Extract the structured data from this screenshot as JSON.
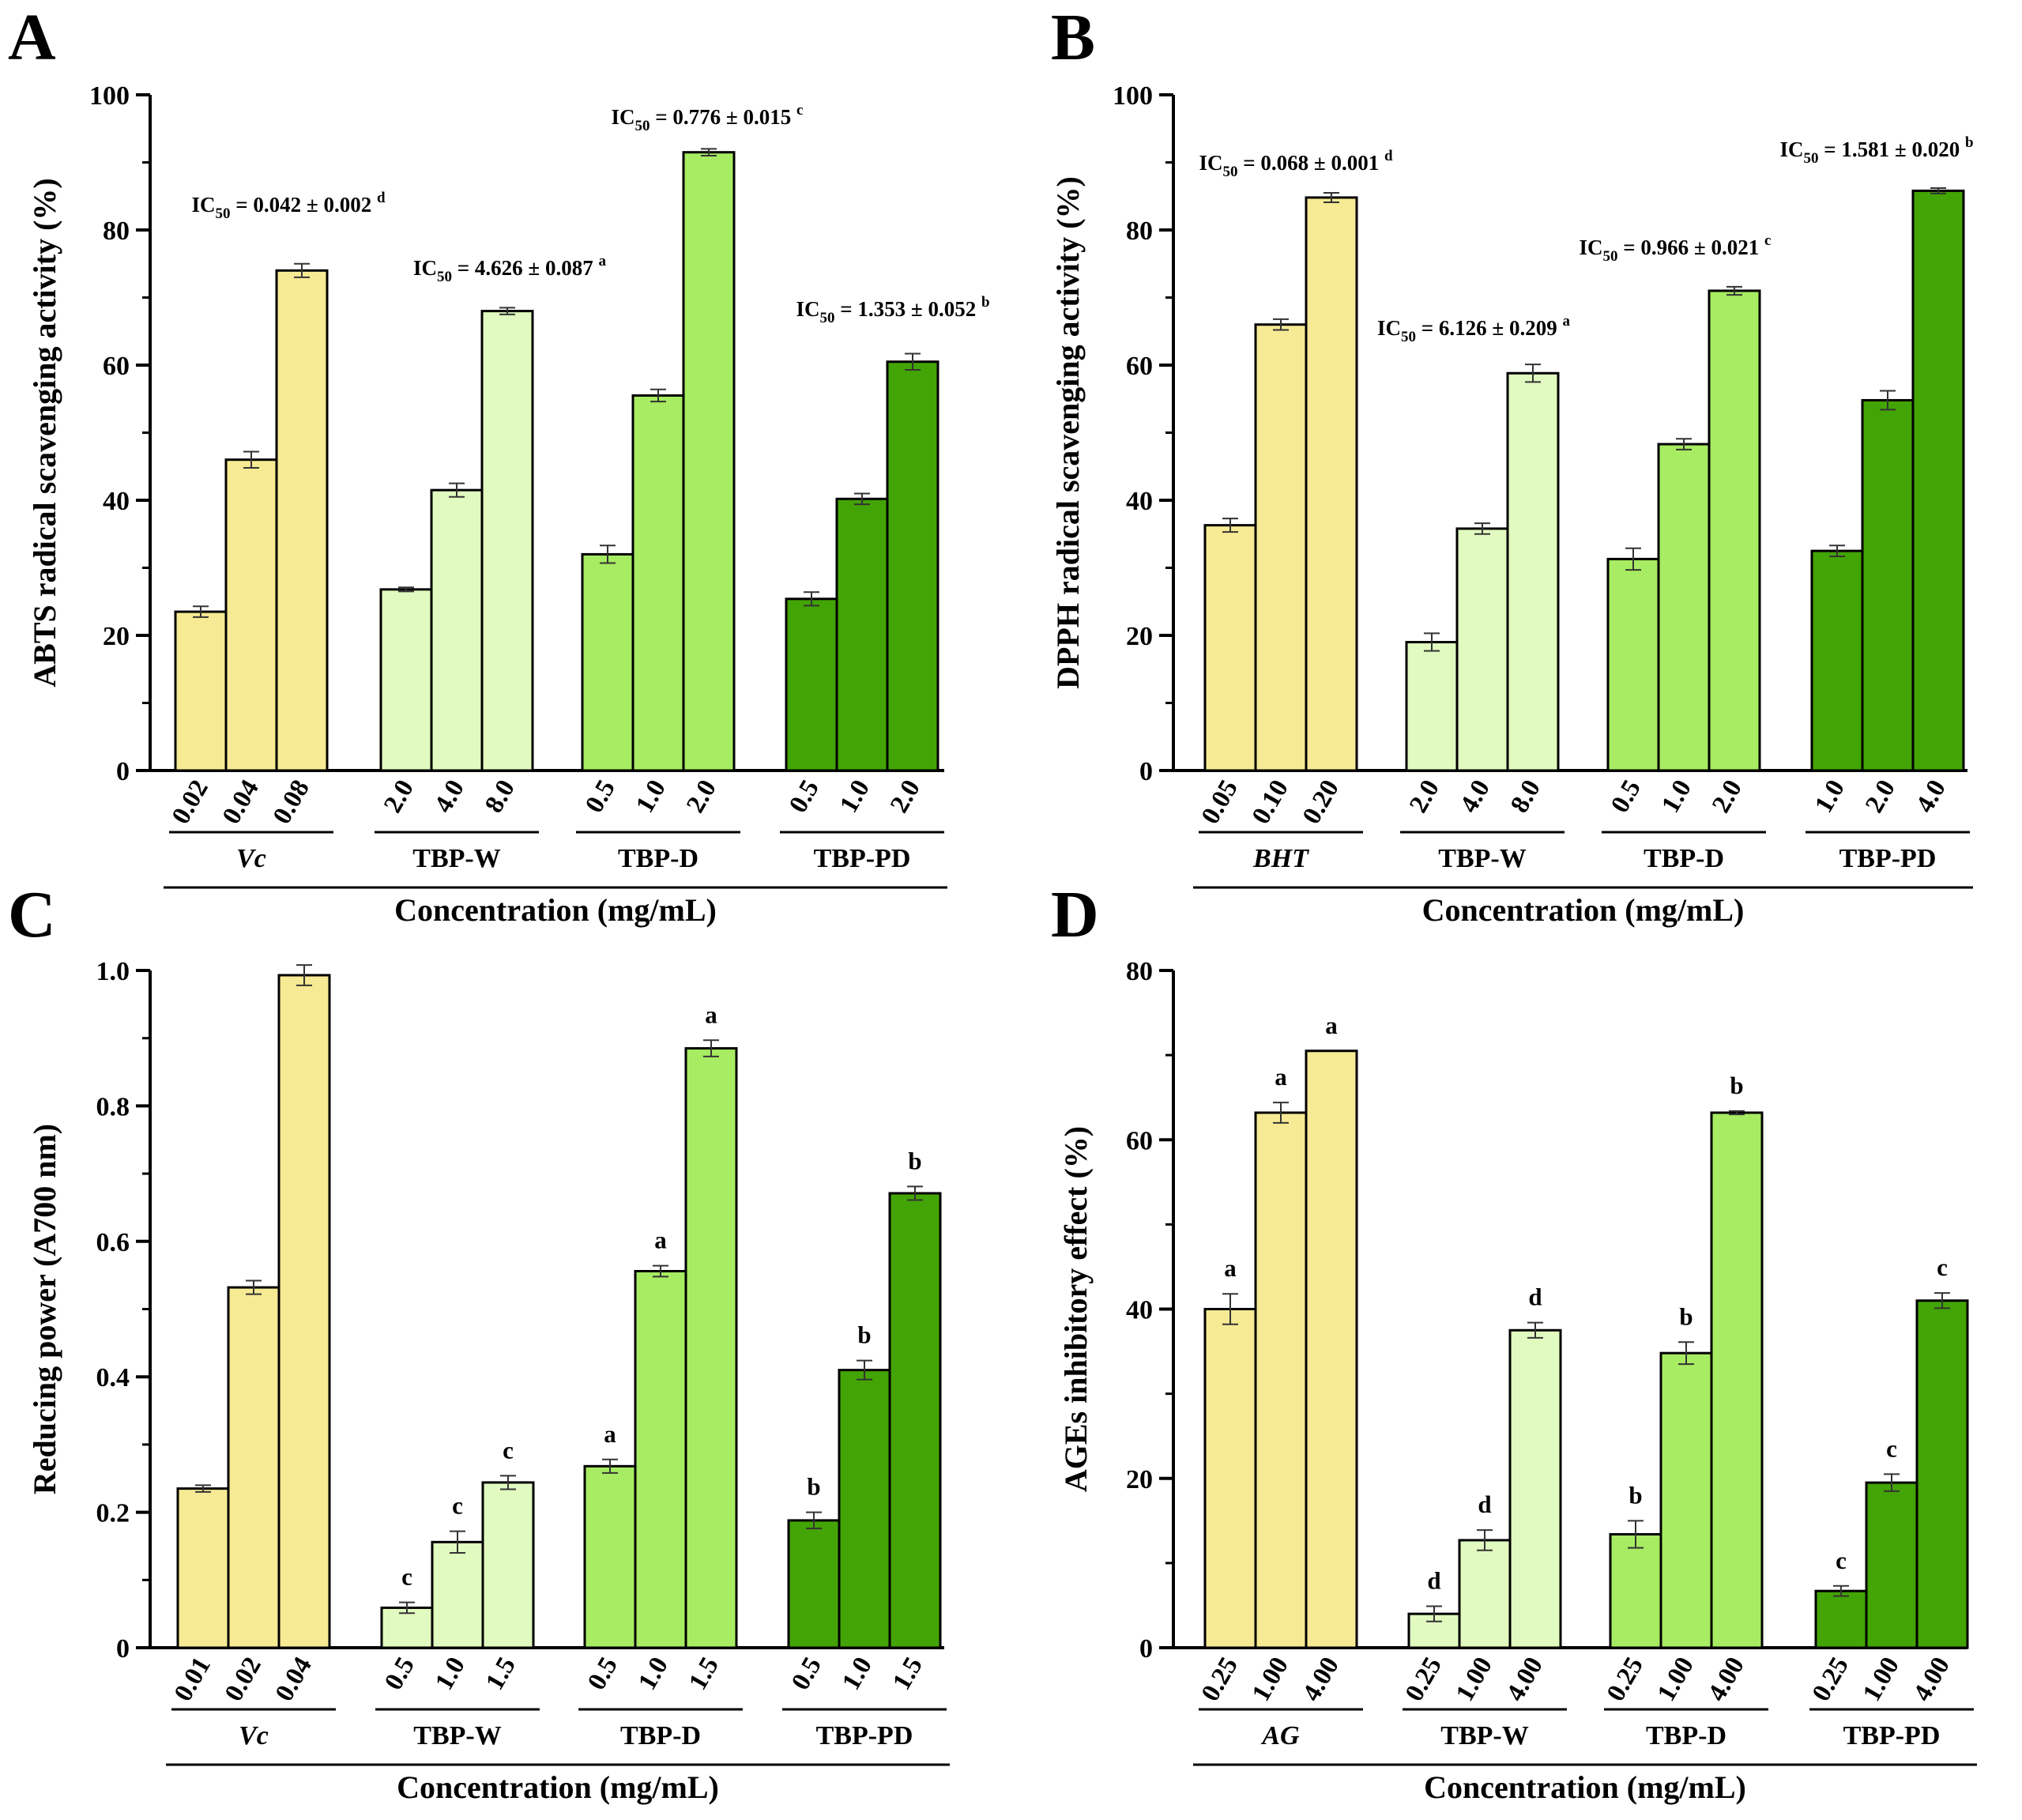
{
  "chart_data": [
    {
      "panel": "A",
      "type": "bar",
      "ylabel": "ABTS radical scavenging activity (%)",
      "xlabel": "Concentration (mg/mL)",
      "ylim": [
        0,
        100
      ],
      "yticks": [
        0,
        20,
        40,
        60,
        80,
        100
      ],
      "groups": [
        {
          "name": "Vc",
          "italic": true,
          "color": "#f7ea94",
          "categories": [
            "0.02",
            "0.04",
            "0.08"
          ],
          "values": [
            23.5,
            46.0,
            74.0
          ],
          "errors": [
            0.8,
            1.2,
            1.0
          ],
          "annotation": {
            "prefix": "IC",
            "sub": "50",
            "text": " = 0.042 ± 0.002 ",
            "sup": "d"
          }
        },
        {
          "name": "TBP-W",
          "italic": false,
          "color": "#e1fac0",
          "categories": [
            "2.0",
            "4.0",
            "8.0"
          ],
          "values": [
            26.8,
            41.5,
            68.0
          ],
          "errors": [
            0.3,
            1.0,
            0.5
          ],
          "annotation": {
            "prefix": "IC",
            "sub": "50",
            "text": " = 4.626 ± 0.087 ",
            "sup": "a"
          }
        },
        {
          "name": "TBP-D",
          "italic": false,
          "color": "#a7ec62",
          "categories": [
            "0.5",
            "1.0",
            "2.0"
          ],
          "values": [
            32.0,
            55.5,
            91.5
          ],
          "errors": [
            1.3,
            0.9,
            0.5
          ],
          "annotation": {
            "prefix": "IC",
            "sub": "50",
            "text": " = 0.776 ± 0.015 ",
            "sup": "c"
          }
        },
        {
          "name": "TBP-PD",
          "italic": false,
          "color": "#43a405",
          "categories": [
            "0.5",
            "1.0",
            "2.0"
          ],
          "values": [
            25.4,
            40.2,
            60.5
          ],
          "errors": [
            1.0,
            0.8,
            1.2
          ],
          "annotation": {
            "prefix": "IC",
            "sub": "50",
            "text": " = 1.353 ± 0.052 ",
            "sup": "b"
          }
        }
      ]
    },
    {
      "panel": "B",
      "type": "bar",
      "ylabel": "DPPH radical scavenging activity (%)",
      "xlabel": "Concentration (mg/mL)",
      "ylim": [
        0,
        100
      ],
      "yticks": [
        0,
        20,
        40,
        60,
        80,
        100
      ],
      "groups": [
        {
          "name": "BHT",
          "italic": true,
          "color": "#f7ea94",
          "categories": [
            "0.05",
            "0.10",
            "0.20"
          ],
          "values": [
            36.3,
            66.0,
            84.8
          ],
          "errors": [
            1.0,
            0.8,
            0.7
          ],
          "annotation": {
            "prefix": "IC",
            "sub": "50",
            "text": " = 0.068 ± 0.001 ",
            "sup": "d"
          }
        },
        {
          "name": "TBP-W",
          "italic": false,
          "color": "#e1fac0",
          "categories": [
            "2.0",
            "4.0",
            "8.0"
          ],
          "values": [
            19.0,
            35.8,
            58.8
          ],
          "errors": [
            1.3,
            0.8,
            1.3
          ],
          "annotation": {
            "prefix": "IC",
            "sub": "50",
            "text": " = 6.126 ± 0.209 ",
            "sup": "a"
          }
        },
        {
          "name": "TBP-D",
          "italic": false,
          "color": "#a7ec62",
          "categories": [
            "0.5",
            "1.0",
            "2.0"
          ],
          "values": [
            31.3,
            48.3,
            71.0
          ],
          "errors": [
            1.6,
            0.8,
            0.6
          ],
          "annotation": {
            "prefix": "IC",
            "sub": "50",
            "text": " = 0.966 ± 0.021 ",
            "sup": "c"
          }
        },
        {
          "name": "TBP-PD",
          "italic": false,
          "color": "#43a405",
          "categories": [
            "1.0",
            "2.0",
            "4.0"
          ],
          "values": [
            32.5,
            54.8,
            85.8
          ],
          "errors": [
            0.8,
            1.4,
            0.4
          ],
          "annotation": {
            "prefix": "IC",
            "sub": "50",
            "text": " = 1.581 ± 0.020 ",
            "sup": "b"
          }
        }
      ]
    },
    {
      "panel": "C",
      "type": "bar",
      "ylabel": "Reducing power (A700 nm)",
      "xlabel": "Concentration (mg/mL)",
      "ylim": [
        0,
        1.0
      ],
      "yticks": [
        "0",
        "0.2",
        "0.4",
        "0.6",
        "0.8",
        "1.0"
      ],
      "groups": [
        {
          "name": "Vc",
          "italic": true,
          "color": "#f7ea94",
          "categories": [
            "0.01",
            "0.02",
            "0.04"
          ],
          "values": [
            0.235,
            0.532,
            0.993
          ],
          "errors": [
            0.005,
            0.01,
            0.015
          ],
          "letters": [
            "",
            "",
            ""
          ]
        },
        {
          "name": "TBP-W",
          "italic": false,
          "color": "#e1fac0",
          "categories": [
            "0.5",
            "1.0",
            "1.5"
          ],
          "values": [
            0.059,
            0.156,
            0.244
          ],
          "errors": [
            0.008,
            0.016,
            0.01
          ],
          "letters": [
            "c",
            "c",
            "c"
          ]
        },
        {
          "name": "TBP-D",
          "italic": false,
          "color": "#a7ec62",
          "categories": [
            "0.5",
            "1.0",
            "1.5"
          ],
          "values": [
            0.268,
            0.556,
            0.885
          ],
          "errors": [
            0.01,
            0.008,
            0.012
          ],
          "letters": [
            "a",
            "a",
            "a"
          ]
        },
        {
          "name": "TBP-PD",
          "italic": false,
          "color": "#43a405",
          "categories": [
            "0.5",
            "1.0",
            "1.5"
          ],
          "values": [
            0.188,
            0.41,
            0.671
          ],
          "errors": [
            0.012,
            0.014,
            0.01
          ],
          "letters": [
            "b",
            "b",
            "b"
          ]
        }
      ]
    },
    {
      "panel": "D",
      "type": "bar",
      "ylabel": "AGEs inhibitory effect (%)",
      "xlabel": "Concentration (mg/mL)",
      "ylim": [
        0,
        80
      ],
      "yticks": [
        0,
        20,
        40,
        60,
        80
      ],
      "groups": [
        {
          "name": "AG",
          "italic": true,
          "color": "#f7ea94",
          "categories": [
            "0.25",
            "1.00",
            "4.00"
          ],
          "values": [
            40.0,
            63.2,
            70.5
          ],
          "errors": [
            1.8,
            1.2,
            0.0
          ],
          "letters": [
            "a",
            "a",
            "a"
          ]
        },
        {
          "name": "TBP-W",
          "italic": false,
          "color": "#e1fac0",
          "categories": [
            "0.25",
            "1.00",
            "4.00"
          ],
          "values": [
            4.0,
            12.7,
            37.5
          ],
          "errors": [
            0.9,
            1.2,
            0.9
          ],
          "letters": [
            "d",
            "d",
            "d"
          ]
        },
        {
          "name": "TBP-D",
          "italic": false,
          "color": "#a7ec62",
          "categories": [
            "0.25",
            "1.00",
            "4.00"
          ],
          "values": [
            13.4,
            34.8,
            63.2
          ],
          "errors": [
            1.6,
            1.3,
            0.2
          ],
          "letters": [
            "b",
            "b",
            "b"
          ]
        },
        {
          "name": "TBP-PD",
          "italic": false,
          "color": "#43a405",
          "categories": [
            "0.25",
            "1.00",
            "4.00"
          ],
          "values": [
            6.7,
            19.5,
            41.0
          ],
          "errors": [
            0.6,
            1.0,
            0.9
          ],
          "letters": [
            "c",
            "c",
            "c"
          ]
        }
      ]
    }
  ]
}
